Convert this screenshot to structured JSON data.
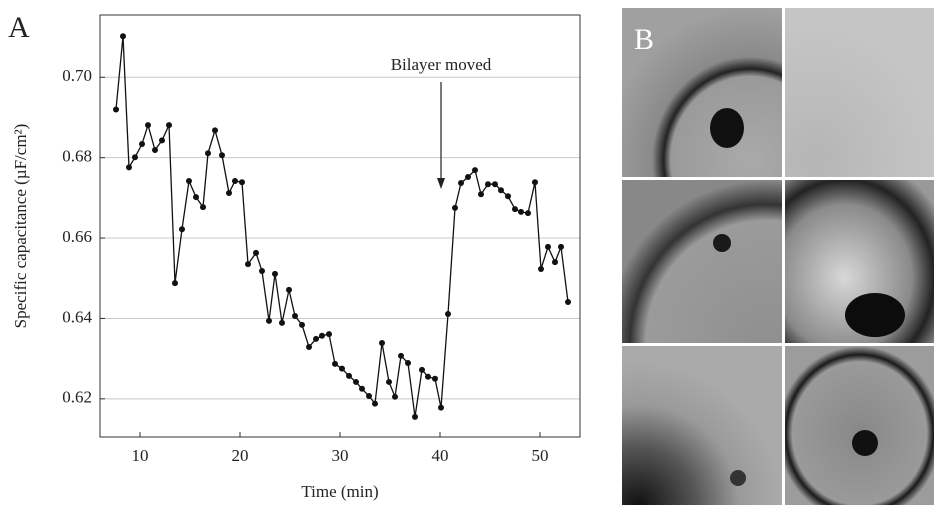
{
  "chart_data": {
    "type": "line",
    "panel_label": "A",
    "xlabel": "Time (min)",
    "ylabel": "Specific capacitance (µF/cm²)",
    "annotation": "Bilayer moved",
    "x": [
      7.6,
      8.3,
      8.9,
      9.5,
      10.2,
      10.8,
      11.5,
      12.2,
      12.9,
      13.5,
      14.2,
      14.9,
      15.6,
      16.3,
      16.8,
      17.5,
      18.2,
      18.9,
      19.5,
      20.2,
      20.8,
      21.6,
      22.2,
      22.9,
      23.5,
      24.2,
      24.9,
      25.5,
      26.2,
      26.9,
      27.6,
      28.2,
      28.9,
      29.5,
      30.2,
      30.9,
      31.6,
      32.2,
      32.9,
      33.5,
      34.2,
      34.9,
      35.5,
      36.1,
      36.8,
      37.5,
      38.2,
      38.8,
      39.5,
      40.1,
      40.8,
      41.5,
      42.1,
      42.8,
      43.5,
      44.1,
      44.8,
      45.5,
      46.1,
      46.8,
      47.5,
      48.1,
      48.8,
      49.5,
      50.1,
      50.8,
      51.5,
      52.1,
      52.8
    ],
    "values": [
      0.692,
      0.7102,
      0.6776,
      0.6801,
      0.6834,
      0.6881,
      0.6819,
      0.6843,
      0.6881,
      0.6488,
      0.6622,
      0.6742,
      0.6702,
      0.6677,
      0.6811,
      0.6868,
      0.6806,
      0.6712,
      0.6742,
      0.6739,
      0.6535,
      0.6563,
      0.6518,
      0.6394,
      0.6511,
      0.6389,
      0.6471,
      0.6406,
      0.6384,
      0.6329,
      0.6349,
      0.6357,
      0.6361,
      0.6287,
      0.6275,
      0.6257,
      0.6242,
      0.6225,
      0.6207,
      0.6188,
      0.6339,
      0.6242,
      0.6205,
      0.6307,
      0.6289,
      0.6155,
      0.6272,
      0.6255,
      0.625,
      0.6178,
      0.6411,
      0.6675,
      0.6737,
      0.6752,
      0.6769,
      0.6709,
      0.6734,
      0.6734,
      0.6719,
      0.6704,
      0.6672,
      0.6665,
      0.6662,
      0.6739,
      0.6523,
      0.6578,
      0.654,
      0.6578,
      0.6441
    ],
    "color": "#111111",
    "xlim": [
      6,
      54
    ],
    "xticks": [
      10,
      20,
      30,
      40,
      50
    ],
    "ylim": [
      0.6105,
      0.7155
    ],
    "yticks": [
      0.62,
      0.64,
      0.66,
      0.68,
      {
        "value": 0.7,
        "label": "0.70"
      }
    ],
    "grid": true
  },
  "image_panel": {
    "label": "B"
  }
}
